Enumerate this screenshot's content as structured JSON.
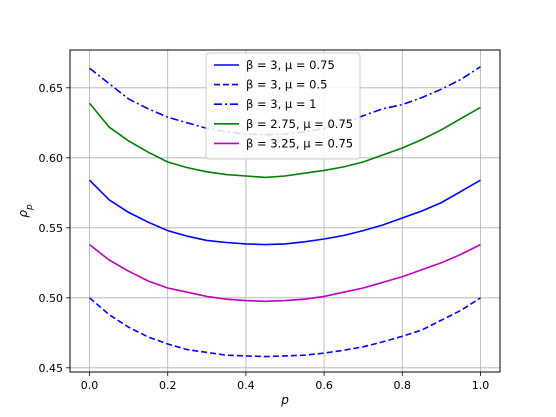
{
  "chart_data": {
    "type": "line",
    "xlabel": "p",
    "ylabel": "ρ_p",
    "xlim": [
      -0.05,
      1.05
    ],
    "ylim": [
      0.447,
      0.677
    ],
    "xticks": [
      0.0,
      0.2,
      0.4,
      0.6,
      0.8,
      1.0
    ],
    "xtick_labels": [
      "0.0",
      "0.2",
      "0.4",
      "0.6",
      "0.8",
      "1.0"
    ],
    "yticks": [
      0.45,
      0.5,
      0.55,
      0.6,
      0.65
    ],
    "ytick_labels": [
      "0.45",
      "0.50",
      "0.55",
      "0.60",
      "0.65"
    ],
    "grid": true,
    "legend_position": "top-center",
    "x": [
      0.0,
      0.05,
      0.1,
      0.15,
      0.2,
      0.25,
      0.3,
      0.35,
      0.4,
      0.45,
      0.5,
      0.55,
      0.6,
      0.65,
      0.7,
      0.75,
      0.8,
      0.85,
      0.9,
      0.95,
      1.0
    ],
    "series": [
      {
        "name": "β = 3, μ = 0.75",
        "color": "#0000ff",
        "dash": "solid",
        "values": [
          0.584,
          0.57,
          0.561,
          0.554,
          0.548,
          0.544,
          0.541,
          0.5395,
          0.5385,
          0.538,
          0.5385,
          0.54,
          0.542,
          0.5445,
          0.548,
          0.552,
          0.557,
          0.562,
          0.568,
          0.576,
          0.584
        ]
      },
      {
        "name": "β = 3, μ = 0.5",
        "color": "#0000ff",
        "dash": "dashed",
        "values": [
          0.5,
          0.488,
          0.479,
          0.472,
          0.467,
          0.463,
          0.461,
          0.459,
          0.4585,
          0.458,
          0.4585,
          0.459,
          0.4605,
          0.4625,
          0.465,
          0.4685,
          0.4725,
          0.477,
          0.484,
          0.491,
          0.5
        ]
      },
      {
        "name": "β = 3, μ = 1",
        "color": "#0000ff",
        "dash": "dashdot",
        "values": [
          0.664,
          0.653,
          0.642,
          0.635,
          0.629,
          0.625,
          0.621,
          0.6185,
          0.617,
          0.6165,
          0.617,
          0.6185,
          0.621,
          0.6245,
          0.63,
          0.635,
          0.638,
          0.643,
          0.649,
          0.656,
          0.665
        ]
      },
      {
        "name": "β = 2.75, μ = 0.75",
        "color": "#008000",
        "dash": "solid",
        "values": [
          0.639,
          0.622,
          0.612,
          0.604,
          0.597,
          0.593,
          0.59,
          0.588,
          0.587,
          0.586,
          0.587,
          0.589,
          0.591,
          0.5935,
          0.597,
          0.602,
          0.607,
          0.613,
          0.62,
          0.628,
          0.636
        ]
      },
      {
        "name": "β = 3.25, μ = 0.75",
        "color": "#bf00bf",
        "dash": "solid",
        "values": [
          0.538,
          0.527,
          0.519,
          0.512,
          0.507,
          0.504,
          0.501,
          0.499,
          0.498,
          0.4975,
          0.498,
          0.499,
          0.501,
          0.504,
          0.507,
          0.511,
          0.515,
          0.52,
          0.525,
          0.531,
          0.538
        ]
      }
    ]
  }
}
